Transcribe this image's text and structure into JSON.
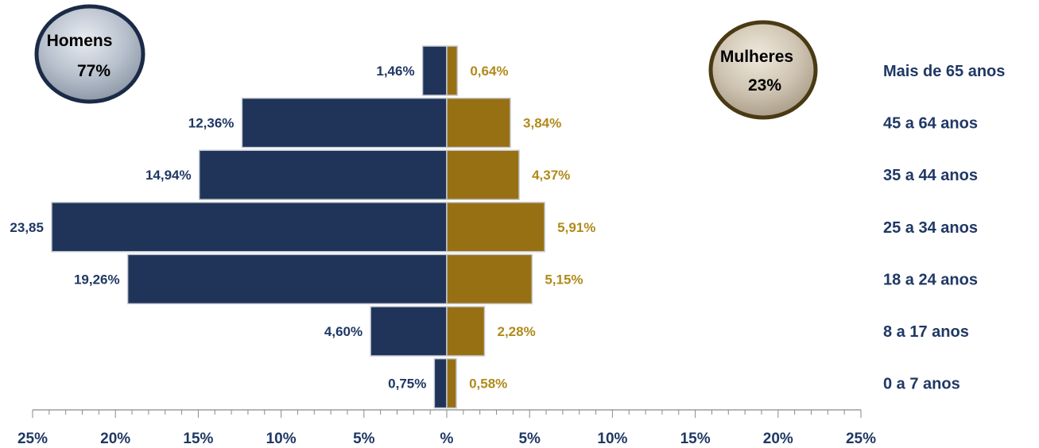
{
  "chart_data": {
    "type": "bar",
    "orientation": "horizontal",
    "categories": [
      "Mais de 65 anos",
      "45 a 64 anos",
      "35 a 44 anos",
      "25 a 34 anos",
      "18 a 24 anos",
      "8 a 17 anos",
      "0 a 7 anos"
    ],
    "series": [
      {
        "name": "Homens",
        "color": "#1f3458",
        "values": [
          1.46,
          12.36,
          14.94,
          23.85,
          19.26,
          4.6,
          0.75
        ],
        "labels": [
          "1,46%",
          "12,36%",
          "14,94%",
          "23,85",
          "19,26%",
          "4,60%",
          "0,75%"
        ]
      },
      {
        "name": "Mulheres",
        "color": "#987014",
        "values": [
          0.64,
          3.84,
          4.37,
          5.91,
          5.15,
          2.28,
          0.58
        ],
        "labels": [
          "0,64%",
          "3,84%",
          "4,37%",
          "5,91%",
          "5,15%",
          "2,28%",
          "0,58%"
        ]
      }
    ],
    "xlim": [
      -25,
      25
    ],
    "x_ticks": [
      "25%",
      "20%",
      "15%",
      "10%",
      "5%",
      "%",
      "5%",
      "10%",
      "15%",
      "20%",
      "25%"
    ],
    "grid": false,
    "badges": {
      "men": {
        "title": "Homens",
        "value": "77%"
      },
      "women": {
        "title": "Mulheres",
        "value": "23%"
      }
    },
    "colors": {
      "men_label": "#1f3864",
      "women_label": "#b08a1a",
      "category_label": "#1f3864"
    }
  }
}
